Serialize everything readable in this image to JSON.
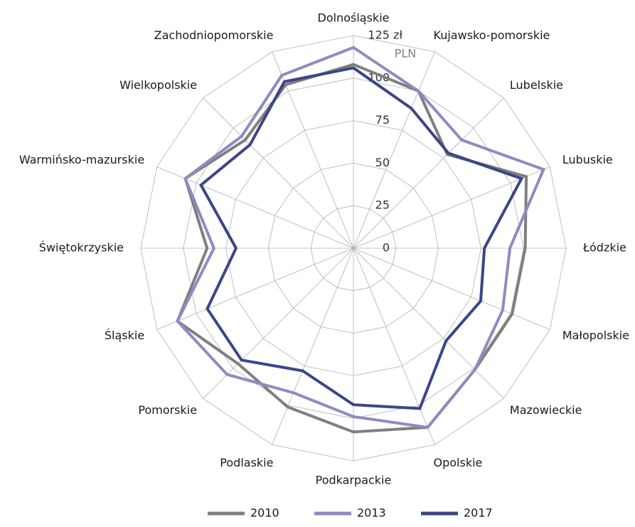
{
  "chart_data": {
    "type": "radar",
    "unit_label": "PLN",
    "categories": [
      "Dolnośląskie",
      "Kujawsko-pomorskie",
      "Lubelskie",
      "Lubuskie",
      "Łódzkie",
      "Małopolskie",
      "Mazowieckie",
      "Opolskie",
      "Podkarpackie",
      "Podlaskie",
      "Pomorskie",
      "Śląskie",
      "Świętokrzyskie",
      "Warmińsko-mazurskie",
      "Wielkopolskie",
      "Zachodniopomorskie"
    ],
    "series": [
      {
        "name": "2010",
        "color": "#7f7f7f",
        "values": [
          108,
          100,
          78,
          110,
          101,
          101,
          101,
          114,
          108,
          101,
          96,
          112,
          86,
          107,
          90,
          104
        ]
      },
      {
        "name": "2013",
        "color": "#8c8cc0",
        "values": [
          118,
          100,
          90,
          121,
          92,
          95,
          101,
          114,
          99,
          92,
          105,
          112,
          82,
          107,
          93,
          110
        ]
      },
      {
        "name": "2017",
        "color": "#3b4687",
        "values": [
          106,
          89,
          79,
          107,
          77,
          81,
          77,
          102,
          92,
          78,
          93,
          93,
          69,
          97,
          86,
          106
        ]
      }
    ],
    "ylim": [
      0,
      125
    ],
    "yticks": [
      0,
      25,
      50,
      75,
      100,
      {
        "value": 125,
        "label": "125 zł"
      }
    ],
    "grid": true,
    "legend": "bottom"
  }
}
